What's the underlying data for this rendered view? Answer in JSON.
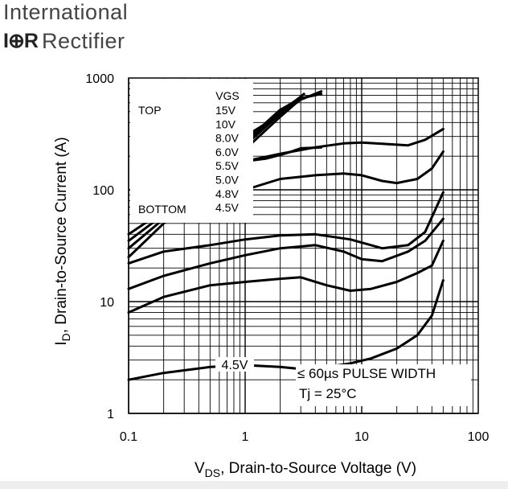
{
  "logo": {
    "line1": "International",
    "brand_mark": "I⊕R",
    "line2": "Rectifier"
  },
  "chart_data": {
    "type": "line",
    "title": "",
    "xlabel": "V",
    "xlabel_sub": "DS",
    "xlabel_rest": ", Drain-to-Source Voltage (V)",
    "ylabel": "I",
    "ylabel_sub": "D",
    "ylabel_rest": ", Drain-to-Source Current (A)",
    "x_scale": "log",
    "y_scale": "log",
    "xlim": [
      0.1,
      100
    ],
    "ylim": [
      1,
      1000
    ],
    "x_ticks": [
      {
        "value": 0.1,
        "label": "0.1"
      },
      {
        "value": 1,
        "label": "1"
      },
      {
        "value": 10,
        "label": "10"
      },
      {
        "value": 100,
        "label": "100"
      }
    ],
    "y_ticks": [
      {
        "value": 1,
        "label": "1"
      },
      {
        "value": 10,
        "label": "10"
      },
      {
        "value": 100,
        "label": "100"
      },
      {
        "value": 1000,
        "label": "1000"
      }
    ],
    "grid": true,
    "legend": {
      "header": "VGS",
      "top_label": "TOP",
      "bottom_label": "BOTTOM",
      "entries": [
        "15V",
        "10V",
        "8.0V",
        "6.0V",
        "5.5V",
        "5.0V",
        "4.8V",
        "4.5V"
      ]
    },
    "annotations": {
      "curve_label": "4.5V",
      "pulse": "≤ 60µs PULSE WIDTH",
      "temp": "Tj = 25°C"
    },
    "series": [
      {
        "x": [
          0.1,
          0.2,
          0.5,
          1,
          2,
          3
        ],
        "y": [
          40,
          65,
          140,
          260,
          500,
          680
        ]
      },
      {
        "x": [
          0.1,
          0.2,
          0.5,
          1,
          2,
          3,
          4.5
        ],
        "y": [
          35,
          60,
          135,
          270,
          520,
          660,
          720
        ]
      },
      {
        "x": [
          0.1,
          0.2,
          0.5,
          1,
          2,
          3.2
        ],
        "y": [
          30,
          55,
          125,
          250,
          480,
          720
        ]
      },
      {
        "x": [
          0.1,
          0.2,
          0.5,
          1,
          2,
          3
        ],
        "y": [
          25,
          50,
          115,
          230,
          450,
          650
        ]
      },
      {
        "x": [
          0.1,
          0.2,
          0.5,
          1,
          2,
          4,
          8,
          15,
          25,
          35,
          50
        ],
        "y": [
          22,
          28,
          32,
          36,
          39,
          40,
          36,
          30,
          32,
          42,
          95
        ]
      },
      {
        "x": [
          0.1,
          0.2,
          0.5,
          1,
          2,
          4,
          7,
          10,
          15,
          25,
          35,
          50
        ],
        "y": [
          13,
          17,
          22,
          26,
          30,
          32,
          28,
          24,
          23,
          28,
          35,
          55
        ]
      },
      {
        "x": [
          0.1,
          0.2,
          0.5,
          1,
          2,
          3,
          5,
          8,
          12,
          20,
          30,
          40,
          50
        ],
        "y": [
          8,
          11,
          14,
          15,
          16,
          16.5,
          14,
          12.5,
          13,
          15,
          18,
          21,
          35
        ]
      },
      {
        "x": [
          0.1,
          0.2,
          0.5,
          1,
          2,
          3,
          5,
          8,
          12,
          20,
          30,
          40,
          50
        ],
        "y": [
          2,
          2.3,
          2.6,
          2.7,
          2.6,
          2.5,
          2.6,
          2.8,
          3.1,
          3.8,
          5,
          7.5,
          15.5
        ]
      }
    ],
    "upper_series": [
      {
        "x": [
          1,
          1.5,
          2,
          2.5,
          3,
          4.5
        ],
        "y": [
          300,
          390,
          480,
          560,
          640,
          760
        ]
      },
      {
        "x": [
          1,
          1.5,
          2,
          2.5,
          3,
          4.5
        ],
        "y": [
          180,
          190,
          205,
          220,
          235,
          240
        ]
      },
      {
        "x": [
          1,
          2,
          4,
          7,
          10,
          15,
          25,
          35,
          50
        ],
        "y": [
          180,
          210,
          240,
          260,
          265,
          258,
          250,
          280,
          350
        ]
      },
      {
        "x": [
          1,
          2,
          4,
          7,
          10,
          15,
          20,
          30,
          40,
          50
        ],
        "y": [
          100,
          125,
          135,
          140,
          135,
          120,
          115,
          125,
          155,
          220
        ]
      }
    ]
  }
}
